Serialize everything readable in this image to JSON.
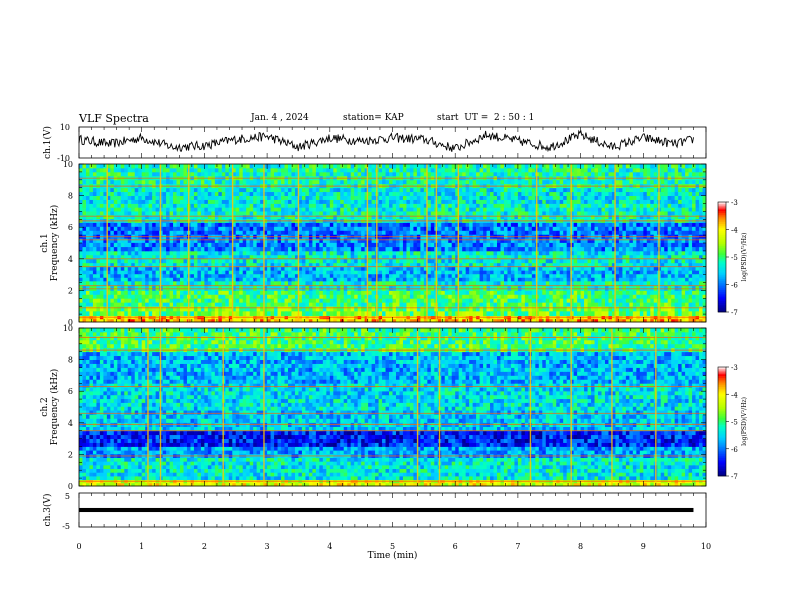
{
  "header": {
    "title": "VLF Spectra",
    "date": "Jan. 4 , 2024",
    "station": "station= KAP",
    "start": "start  UT =  2 : 50 : 1"
  },
  "colorbar": {
    "label": "log(PSD)(V²/Hz)",
    "ticks": [
      "-3",
      "-4",
      "-5",
      "-6",
      "-7"
    ],
    "range": [
      -7,
      -3
    ],
    "colors": [
      "#000080",
      "#0000ff",
      "#00a0ff",
      "#00ffff",
      "#00ff80",
      "#80ff00",
      "#ffff00",
      "#ff8000",
      "#ff0000",
      "#ffffff"
    ]
  },
  "chart_data": [
    {
      "type": "line",
      "panel": "ch1-waveform",
      "ylabel": "ch.1(V)",
      "ylim": [
        -10,
        10
      ],
      "y_ticks": [
        "10",
        "-10"
      ],
      "xlim": [
        0,
        10
      ],
      "description_series": "noisy oscillating waveform",
      "x": [
        0,
        0.5,
        1.0,
        1.5,
        2.0,
        2.5,
        3.0,
        3.5,
        4.0,
        4.5,
        5.0,
        5.5,
        6.0,
        6.5,
        7.0,
        7.5,
        8.0,
        8.5,
        9.0,
        9.5,
        9.8
      ],
      "y": [
        2,
        -1,
        3,
        -3,
        -2,
        2,
        4,
        -3,
        3,
        1,
        3,
        2,
        -4,
        5,
        1,
        -3,
        5,
        -3,
        3,
        -1,
        2
      ]
    },
    {
      "type": "heatmap",
      "panel": "ch1-spectrogram",
      "ylabel": "ch.1\nFrequency (kHz)",
      "ylim": [
        0,
        10
      ],
      "y_ticks": [
        "0",
        "2",
        "4",
        "6",
        "8",
        "10"
      ],
      "xlim": [
        0,
        10
      ],
      "bands": [
        {
          "f0": 0.0,
          "f1": 0.4,
          "level": -3.8
        },
        {
          "f0": 0.4,
          "f1": 1.0,
          "level": -4.8
        },
        {
          "f0": 1.0,
          "f1": 2.0,
          "level": -5.0
        },
        {
          "f0": 2.0,
          "f1": 2.6,
          "level": -5.3
        },
        {
          "f0": 2.6,
          "f1": 3.5,
          "level": -5.7
        },
        {
          "f0": 3.5,
          "f1": 4.5,
          "level": -5.4
        },
        {
          "f0": 4.5,
          "f1": 5.3,
          "level": -5.9
        },
        {
          "f0": 5.3,
          "f1": 6.3,
          "level": -6.0
        },
        {
          "f0": 6.3,
          "f1": 7.5,
          "level": -5.3
        },
        {
          "f0": 7.5,
          "f1": 8.5,
          "level": -5.4
        },
        {
          "f0": 8.5,
          "f1": 10.0,
          "level": -5.2
        }
      ],
      "lines_khz": [
        0.3,
        0.9,
        2.1,
        2.3,
        3.5,
        4.0,
        5.2,
        5.4,
        6.4,
        6.7,
        8.6,
        9.1
      ],
      "bursts_min": [
        0.45,
        1.3,
        1.75,
        2.45,
        2.95,
        3.5,
        4.6,
        4.75,
        5.55,
        5.7,
        6.05,
        7.3,
        7.85,
        8.55,
        9.25
      ]
    },
    {
      "type": "heatmap",
      "panel": "ch2-spectrogram",
      "ylabel": "ch.2\nFrequency (kHz)",
      "ylim": [
        0,
        10
      ],
      "y_ticks": [
        "0",
        "2",
        "4",
        "6",
        "8",
        "10"
      ],
      "xlim": [
        0,
        10
      ],
      "bands": [
        {
          "f0": 0.0,
          "f1": 0.4,
          "level": -4.2
        },
        {
          "f0": 0.4,
          "f1": 1.8,
          "level": -5.4
        },
        {
          "f0": 1.8,
          "f1": 2.5,
          "level": -5.8
        },
        {
          "f0": 2.5,
          "f1": 3.5,
          "level": -6.4
        },
        {
          "f0": 3.5,
          "f1": 4.8,
          "level": -5.6
        },
        {
          "f0": 4.8,
          "f1": 6.5,
          "level": -5.5
        },
        {
          "f0": 6.5,
          "f1": 8.5,
          "level": -5.7
        },
        {
          "f0": 8.5,
          "f1": 10.0,
          "level": -5.0
        }
      ],
      "lines_khz": [
        0.3,
        1.9,
        3.5,
        3.9,
        4.6,
        6.3,
        8.6,
        9.4
      ],
      "bursts_min": [
        1.1,
        1.3,
        2.3,
        2.95,
        5.4,
        5.75,
        7.2,
        7.85,
        8.5,
        9.2
      ]
    },
    {
      "type": "line",
      "panel": "ch3-waveform",
      "ylabel": "ch.3(V)",
      "ylim": [
        -5,
        5
      ],
      "y_ticks": [
        "5",
        "-5"
      ],
      "xlim": [
        0,
        10
      ],
      "x": [
        0,
        9.8
      ],
      "y": [
        0,
        0
      ],
      "band_halfwidth": 0.6
    }
  ],
  "xaxis": {
    "label": "Time  (min)",
    "ticks": [
      "0",
      "1",
      "2",
      "3",
      "4",
      "5",
      "6",
      "7",
      "8",
      "9",
      "10"
    ]
  }
}
